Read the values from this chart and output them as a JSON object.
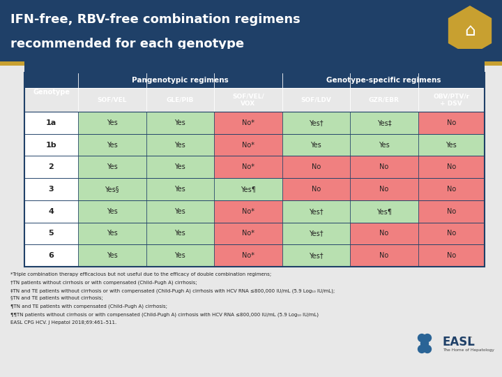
{
  "title_line1": "IFN-free, RBV-free combination regimens",
  "title_line2": "recommended for each genotype",
  "title_bg": "#1f4068",
  "title_gold_bar": "#c8a030",
  "header_bg": "#1f4068",
  "col_headers": [
    "Genotype",
    "SOF/VEL",
    "GLE/PIB",
    "SOF/VEL/\nVOX",
    "SOF/LDV",
    "GZR/EBR",
    "OBV/PTV/r\n+ DSV"
  ],
  "rows": [
    {
      "genotype": "1a",
      "values": [
        "Yes",
        "Yes",
        "No*",
        "Yes†",
        "Yes‡",
        "No"
      ]
    },
    {
      "genotype": "1b",
      "values": [
        "Yes",
        "Yes",
        "No*",
        "Yes",
        "Yes",
        "Yes"
      ]
    },
    {
      "genotype": "2",
      "values": [
        "Yes",
        "Yes",
        "No*",
        "No",
        "No",
        "No"
      ]
    },
    {
      "genotype": "3",
      "values": [
        "Yes§",
        "Yes",
        "Yes¶",
        "No",
        "No",
        "No"
      ]
    },
    {
      "genotype": "4",
      "values": [
        "Yes",
        "Yes",
        "No*",
        "Yes†",
        "Yes¶",
        "No"
      ]
    },
    {
      "genotype": "5",
      "values": [
        "Yes",
        "Yes",
        "No*",
        "Yes†",
        "No",
        "No"
      ]
    },
    {
      "genotype": "6",
      "values": [
        "Yes",
        "Yes",
        "No*",
        "Yes†",
        "No",
        "No"
      ]
    }
  ],
  "yes_color": "#b8e0b0",
  "no_color": "#f08080",
  "white_color": "#ffffff",
  "footnotes": [
    "*Triple combination therapy efficacious but not useful due to the efficacy of double combination regimens;",
    "†TN patients without cirrhosis or with compensated (Child–Pugh A) cirrhosis;",
    "‡TN and TE patients without cirrhosis or with compensated (Child-Pugh A) cirrhosis with HCV RNA ≤800,000 IU/mL (5.9 Log₁₀ IU/mL);",
    "§TN and TE patients without cirrhosis;",
    "¶TN and TE patients with compensated (Child–Pugh A) cirrhosis;",
    "¶¶TN patients without cirrhosis or with compensated (Child-Pugh A) cirrhosis with HCV RNA ≤800,000 IU/mL (5.9 Log₁₀ IU/mL)",
    "EASL CPG HCV. J Hepatol 2018;69:461–511."
  ],
  "bg_color": "#e8e8e8",
  "border_color": "#1f4068"
}
